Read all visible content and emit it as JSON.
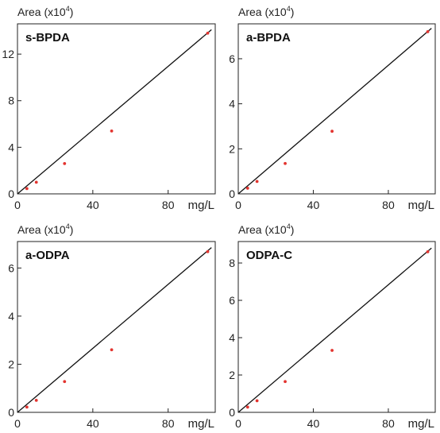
{
  "chart_data": [
    {
      "type": "scatter",
      "title": "s-BPDA",
      "ylabel": "Area (x10",
      "ylabel_exponent": "4",
      "ylabel_close": ")",
      "xlabel": "mg/L",
      "xlim": [
        0,
        105
      ],
      "ylim": [
        0,
        14.6
      ],
      "xticks": [
        0,
        40,
        80
      ],
      "yticks": [
        0,
        4,
        8,
        12
      ],
      "fit_line": [
        [
          0,
          0
        ],
        [
          103,
          14.1
        ]
      ],
      "points": [
        [
          5,
          0.45
        ],
        [
          10,
          1.0
        ],
        [
          25,
          2.6
        ],
        [
          50,
          5.4
        ],
        [
          101,
          13.8
        ]
      ],
      "point_color": "#e3342f",
      "line_color": "#111111"
    },
    {
      "type": "scatter",
      "title": "a-BPDA",
      "ylabel": "Area (x10",
      "ylabel_exponent": "4",
      "ylabel_close": ")",
      "xlabel": "mg/L",
      "xlim": [
        0,
        105
      ],
      "ylim": [
        0,
        7.55
      ],
      "xticks": [
        0,
        40,
        80
      ],
      "yticks": [
        0,
        2,
        4,
        6
      ],
      "fit_line": [
        [
          0,
          0
        ],
        [
          103,
          7.35
        ]
      ],
      "points": [
        [
          5,
          0.25
        ],
        [
          10,
          0.55
        ],
        [
          25,
          1.35
        ],
        [
          50,
          2.78
        ],
        [
          101,
          7.2
        ]
      ],
      "point_color": "#e3342f",
      "line_color": "#111111"
    },
    {
      "type": "scatter",
      "title": "a-ODPA",
      "ylabel": "Area (x10",
      "ylabel_exponent": "4",
      "ylabel_close": ")",
      "xlabel": "mg/L",
      "xlim": [
        0,
        105
      ],
      "ylim": [
        0,
        7.1
      ],
      "xticks": [
        0,
        40,
        80
      ],
      "yticks": [
        0,
        2,
        4,
        6
      ],
      "fit_line": [
        [
          0,
          0
        ],
        [
          103,
          6.85
        ]
      ],
      "points": [
        [
          5,
          0.22
        ],
        [
          10,
          0.5
        ],
        [
          25,
          1.28
        ],
        [
          50,
          2.6
        ],
        [
          101,
          6.68
        ]
      ],
      "point_color": "#e3342f",
      "line_color": "#111111"
    },
    {
      "type": "scatter",
      "title": "ODPA-C",
      "ylabel": "Area (x10",
      "ylabel_exponent": "4",
      "ylabel_close": ")",
      "xlabel": "mg/L",
      "xlim": [
        0,
        105
      ],
      "ylim": [
        0,
        9.15
      ],
      "xticks": [
        0,
        40,
        80
      ],
      "yticks": [
        0,
        2,
        4,
        6,
        8
      ],
      "fit_line": [
        [
          0,
          0
        ],
        [
          103,
          8.8
        ]
      ],
      "points": [
        [
          5,
          0.28
        ],
        [
          10,
          0.62
        ],
        [
          25,
          1.65
        ],
        [
          50,
          3.32
        ],
        [
          101,
          8.6
        ]
      ],
      "point_color": "#e3342f",
      "line_color": "#111111"
    }
  ]
}
